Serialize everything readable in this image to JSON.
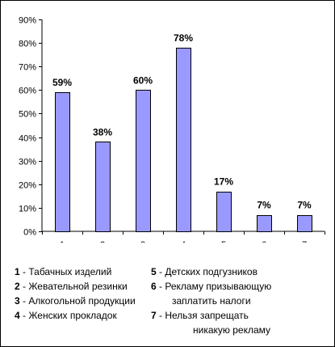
{
  "chart_data": {
    "type": "bar",
    "categories": [
      "1",
      "2",
      "3",
      "4",
      "5",
      "6",
      "7"
    ],
    "values": [
      59,
      38,
      60,
      78,
      17,
      7,
      7
    ],
    "data_labels": [
      "59%",
      "38%",
      "60%",
      "78%",
      "17%",
      "7%",
      "7%"
    ],
    "title": "",
    "xlabel": "",
    "ylabel": "",
    "ylim": [
      0,
      90
    ],
    "yticks": [
      "0%",
      "10%",
      "20%",
      "30%",
      "40%",
      "50%",
      "60%",
      "70%",
      "80%",
      "90%"
    ],
    "grid": false,
    "legend_position": "bottom",
    "bar_color": "#9999FF",
    "bar_edge_color": "#000000"
  },
  "legend": {
    "left": [
      {
        "num": "1",
        "text": " - Табачных изделий"
      },
      {
        "num": "2",
        "text": " - Жевательной резинки"
      },
      {
        "num": "3",
        "text": " - Алкогольной продукции"
      },
      {
        "num": "4",
        "text": " - Женских прокладок"
      }
    ],
    "right": [
      {
        "num": "5",
        "text": " - Детских подгузников"
      },
      {
        "num": "6",
        "text": " - Рекламу призывающую",
        "cont": "заплатить налоги"
      },
      {
        "num": "7",
        "text": " - Нельзя запрещать",
        "cont": "никакую рекламу"
      }
    ]
  }
}
